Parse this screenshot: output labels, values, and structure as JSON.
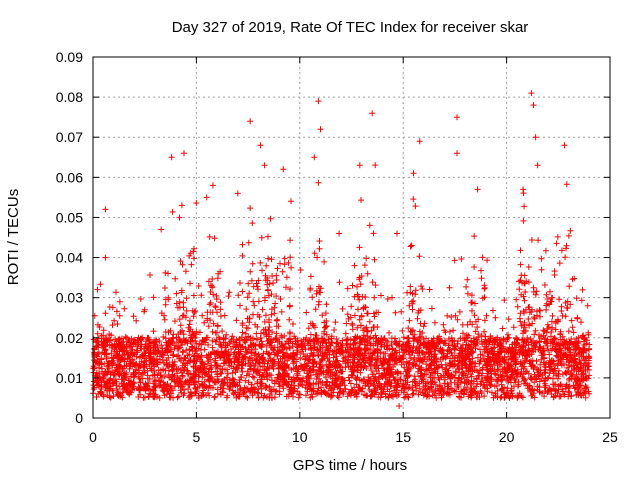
{
  "chart_data": {
    "type": "scatter",
    "title": "Day 327 of 2019, Rate Of TEC Index for receiver skar",
    "xlabel": "GPS time / hours",
    "ylabel": "ROTI / TECUs",
    "xlim": [
      0,
      25
    ],
    "ylim": [
      0,
      0.09
    ],
    "xticks": [
      "0",
      "5",
      "10",
      "15",
      "20",
      "25"
    ],
    "yticks": [
      "0",
      "0.01",
      "0.02",
      "0.03",
      "0.04",
      "0.05",
      "0.06",
      "0.07",
      "0.08",
      "0.09"
    ],
    "grid": true,
    "marker": "+",
    "color": "#ff0000",
    "series": [
      {
        "name": "ROTI",
        "x_range": [
          0,
          24
        ],
        "baseline_range": [
          0.005,
          0.02
        ],
        "notable_points": [
          {
            "x": 0.6,
            "y": 0.052
          },
          {
            "x": 0.6,
            "y": 0.04
          },
          {
            "x": 1.3,
            "y": 0.029
          },
          {
            "x": 2.5,
            "y": 0.027
          },
          {
            "x": 3.3,
            "y": 0.047
          },
          {
            "x": 3.8,
            "y": 0.065
          },
          {
            "x": 4.4,
            "y": 0.066
          },
          {
            "x": 4.3,
            "y": 0.053
          },
          {
            "x": 5.5,
            "y": 0.055
          },
          {
            "x": 5.8,
            "y": 0.058
          },
          {
            "x": 7.0,
            "y": 0.056
          },
          {
            "x": 7.6,
            "y": 0.074
          },
          {
            "x": 8.1,
            "y": 0.068
          },
          {
            "x": 8.3,
            "y": 0.063
          },
          {
            "x": 9.2,
            "y": 0.062
          },
          {
            "x": 10.7,
            "y": 0.065
          },
          {
            "x": 10.9,
            "y": 0.079
          },
          {
            "x": 11.0,
            "y": 0.072
          },
          {
            "x": 11.9,
            "y": 0.046
          },
          {
            "x": 12.9,
            "y": 0.063
          },
          {
            "x": 13.5,
            "y": 0.076
          },
          {
            "x": 14.7,
            "y": 0.046
          },
          {
            "x": 15.5,
            "y": 0.061
          },
          {
            "x": 15.8,
            "y": 0.069
          },
          {
            "x": 17.6,
            "y": 0.075
          },
          {
            "x": 17.6,
            "y": 0.066
          },
          {
            "x": 18.6,
            "y": 0.057
          },
          {
            "x": 20.8,
            "y": 0.057
          },
          {
            "x": 21.2,
            "y": 0.081
          },
          {
            "x": 21.3,
            "y": 0.078
          },
          {
            "x": 21.4,
            "y": 0.07
          },
          {
            "x": 21.5,
            "y": 0.063
          },
          {
            "x": 22.8,
            "y": 0.068
          },
          {
            "x": 14.8,
            "y": 0.003
          },
          {
            "x": 23.9,
            "y": 0.012
          }
        ]
      }
    ]
  }
}
